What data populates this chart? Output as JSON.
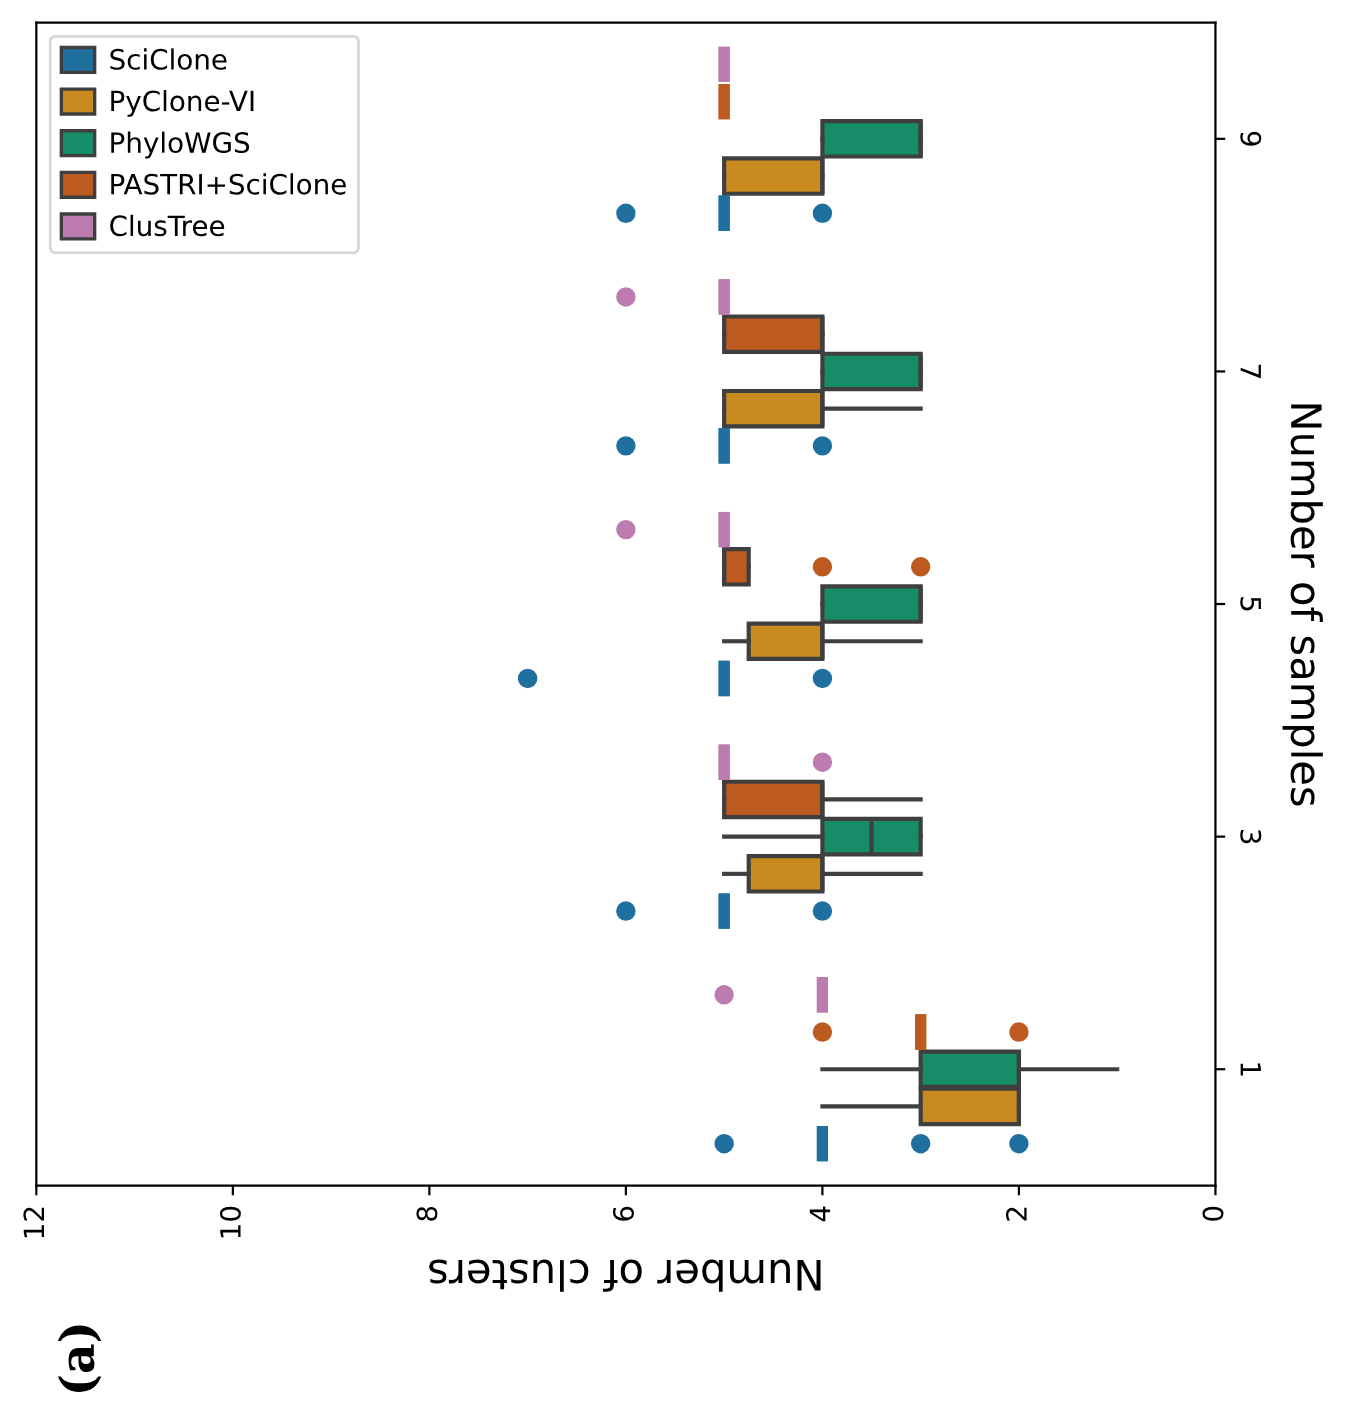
{
  "chart_data": {
    "type": "box",
    "orientation": "horizontal",
    "xlabel": "Number of clusters",
    "ylabel": "Number of samples",
    "categories": [
      "9",
      "7",
      "5",
      "3",
      "1"
    ],
    "xlim": [
      12,
      0
    ],
    "xticks": [
      12,
      10,
      8,
      6,
      4,
      2,
      0
    ],
    "legend": "top left",
    "grid": false,
    "annotations": [
      "(a)"
    ],
    "series": [
      {
        "name": "SciClone",
        "color": "#1f6f9f",
        "boxes": [
          {
            "low": 5,
            "q1": 5,
            "median": 5,
            "q3": 5,
            "high": 5,
            "outliers": [
              6,
              4
            ]
          },
          {
            "low": 5,
            "q1": 5,
            "median": 5,
            "q3": 5,
            "high": 5,
            "outliers": [
              6,
              4
            ]
          },
          {
            "low": 5,
            "q1": 5,
            "median": 5,
            "q3": 5,
            "high": 5,
            "outliers": [
              7,
              4
            ]
          },
          {
            "low": 5,
            "q1": 5,
            "median": 5,
            "q3": 5,
            "high": 5,
            "outliers": [
              6,
              4
            ]
          },
          {
            "low": 4,
            "q1": 4,
            "median": 4,
            "q3": 4,
            "high": 4,
            "outliers": [
              5,
              3,
              2
            ]
          }
        ]
      },
      {
        "name": "PyClone-VI",
        "color": "#c98a1f",
        "boxes": [
          {
            "low": 4,
            "q1": 4,
            "median": 4,
            "q3": 5,
            "high": 5
          },
          {
            "low": 3,
            "q1": 4,
            "median": 4,
            "q3": 5,
            "high": 5
          },
          {
            "low": 3,
            "q1": 4,
            "median": 4,
            "q3": 4.75,
            "high": 5
          },
          {
            "low": 3,
            "q1": 4,
            "median": 4,
            "q3": 4.75,
            "high": 5
          },
          {
            "low": 2,
            "q1": 2,
            "median": 2,
            "q3": 3,
            "high": 4
          }
        ]
      },
      {
        "name": "PhyloWGS",
        "color": "#168c69",
        "boxes": [
          {
            "low": 3,
            "q1": 3,
            "median": 3,
            "q3": 4,
            "high": 4
          },
          {
            "low": 3,
            "q1": 3,
            "median": 3,
            "q3": 4,
            "high": 4
          },
          {
            "low": 3,
            "q1": 3,
            "median": 3,
            "q3": 4,
            "high": 4
          },
          {
            "low": 3,
            "q1": 3,
            "median": 3.5,
            "q3": 4,
            "high": 5
          },
          {
            "low": 1,
            "q1": 2,
            "median": 2,
            "q3": 3,
            "high": 4
          }
        ]
      },
      {
        "name": "PASTRI+SciClone",
        "color": "#bc5a20",
        "boxes": [
          {
            "low": 5,
            "q1": 5,
            "median": 5,
            "q3": 5,
            "high": 5
          },
          {
            "low": 4,
            "q1": 4,
            "median": 4,
            "q3": 5,
            "high": 5
          },
          {
            "low": 4.75,
            "q1": 4.75,
            "median": 5,
            "q3": 5,
            "high": 5,
            "outliers": [
              4,
              3
            ]
          },
          {
            "low": 3,
            "q1": 4,
            "median": 4,
            "q3": 5,
            "high": 5
          },
          {
            "low": 3,
            "q1": 3,
            "median": 3,
            "q3": 3,
            "high": 3,
            "outliers": [
              4,
              2
            ]
          }
        ]
      },
      {
        "name": "ClusTree",
        "color": "#bd7cb0",
        "boxes": [
          {
            "low": 5,
            "q1": 5,
            "median": 5,
            "q3": 5,
            "high": 5
          },
          {
            "low": 5,
            "q1": 5,
            "median": 5,
            "q3": 5,
            "high": 5,
            "outliers": [
              6
            ]
          },
          {
            "low": 5,
            "q1": 5,
            "median": 5,
            "q3": 5,
            "high": 5,
            "outliers": [
              6
            ]
          },
          {
            "low": 5,
            "q1": 5,
            "median": 5,
            "q3": 5,
            "high": 5,
            "outliers": [
              4
            ]
          },
          {
            "low": 4,
            "q1": 4,
            "median": 4,
            "q3": 4,
            "high": 4,
            "outliers": [
              5
            ]
          }
        ]
      }
    ]
  }
}
